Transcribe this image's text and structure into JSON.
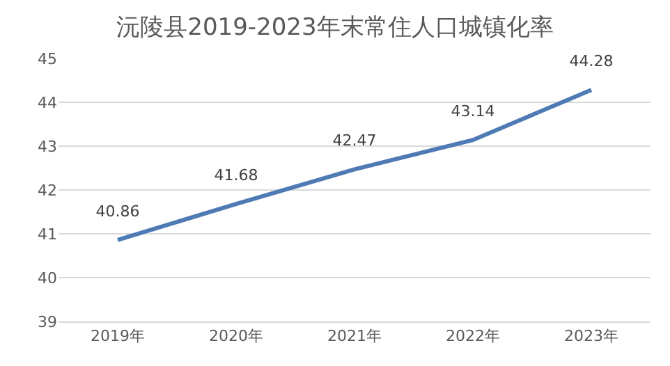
{
  "chart_data": {
    "type": "line",
    "title": "沅陵县2019-2023年末常住人口城镇化率",
    "categories": [
      "2019年",
      "2020年",
      "2021年",
      "2022年",
      "2023年"
    ],
    "series": [
      {
        "color": "#4f7bb5",
        "values": [
          40.86,
          41.68,
          42.47,
          43.14,
          44.28
        ]
      }
    ],
    "ylim": [
      39,
      45
    ],
    "yticks": [
      39,
      40,
      41,
      42,
      43,
      44,
      45
    ],
    "grid": "y",
    "data_labels": true
  }
}
